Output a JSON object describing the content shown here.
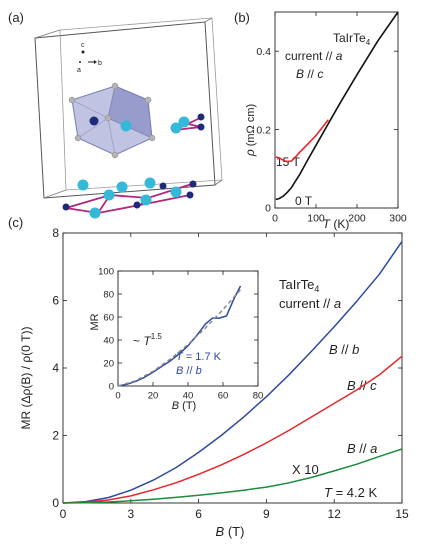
{
  "panel_a": {
    "label": "(a)",
    "axes": {
      "c": "c",
      "a": "a",
      "b": "b"
    }
  },
  "panel_b": {
    "label": "(b)",
    "compound": {
      "main": "TaIrTe",
      "sub": "4"
    },
    "annotations": {
      "current": "current // ",
      "current_dir": "a",
      "field": "B",
      "field_rest": " // ",
      "field_dir": "c"
    },
    "ylabel": {
      "rho": "ρ",
      "unit": "(mΩ cm)"
    },
    "xlabel": {
      "T": "T",
      "unit": " (K)"
    },
    "curve_labels": {
      "high": "15 T",
      "zero": "0 T"
    },
    "colors": {
      "zero": "#111111",
      "high": "#e8262a"
    }
  },
  "panel_c": {
    "label": "(c)",
    "compound": {
      "main": "TaIrTe",
      "sub": "4"
    },
    "current": {
      "text": "current // ",
      "dir": "a"
    },
    "ylabel": "MR (Δρ(B) / ρ(0 T))",
    "xlabel": {
      "B": "B",
      "unit": " (T)"
    },
    "series_labels": {
      "b": {
        "B": "B",
        "rest": " // ",
        "dir": "b"
      },
      "c": {
        "B": "B",
        "rest": " // ",
        "dir": "c"
      },
      "a": {
        "B": "B",
        "rest": " // ",
        "dir": "a"
      }
    },
    "x10": "X 10",
    "temperature": {
      "T": "T",
      "rest": " = 4.2 K"
    },
    "colors": {
      "b": "#2e4aa0",
      "c": "#e8262a",
      "a": "#1e8a3c"
    }
  },
  "inset": {
    "ylabel": "MR",
    "xlabel": {
      "B": "B",
      "unit": " (T)"
    },
    "power_law": {
      "prefix": "~ ",
      "T": "T",
      "exp": "1.5"
    },
    "temperature": {
      "T": "T",
      "rest": " = 1.7 K"
    },
    "field": {
      "B": "B",
      "rest": " // ",
      "dir": "b"
    }
  },
  "chart_data": [
    {
      "type": "line",
      "panel": "(b)",
      "xlabel": "T (K)",
      "ylabel": "ρ (mΩ cm)",
      "xlim": [
        0,
        300
      ],
      "ylim": [
        0,
        0.5
      ],
      "xticks": [
        0,
        100,
        200,
        300
      ],
      "yticks": [
        0,
        0.2,
        0.4
      ],
      "series": [
        {
          "name": "0 T",
          "x": [
            2,
            10,
            20,
            30,
            40,
            60,
            80,
            100,
            130,
            160,
            200,
            250,
            300
          ],
          "y": [
            0.022,
            0.024,
            0.03,
            0.04,
            0.052,
            0.085,
            0.123,
            0.16,
            0.215,
            0.27,
            0.34,
            0.425,
            0.5
          ]
        },
        {
          "name": "15 T",
          "x": [
            2,
            10,
            20,
            30,
            40,
            50,
            60,
            80,
            100,
            130
          ],
          "y": [
            0.13,
            0.128,
            0.122,
            0.118,
            0.12,
            0.13,
            0.142,
            0.163,
            0.185,
            0.225
          ]
        }
      ]
    },
    {
      "type": "line",
      "panel": "(c)",
      "xlabel": "B (T)",
      "ylabel": "MR (Δρ(B) / ρ(0 T))",
      "xlim": [
        0,
        15
      ],
      "ylim": [
        0,
        8
      ],
      "xticks": [
        0,
        3,
        6,
        9,
        12,
        15
      ],
      "yticks": [
        0,
        2,
        4,
        6,
        8
      ],
      "series": [
        {
          "name": "B // b",
          "x": [
            0,
            1,
            2,
            3,
            4,
            5,
            6,
            7,
            8,
            9,
            10,
            11,
            12,
            13,
            14,
            15
          ],
          "y": [
            0,
            0.04,
            0.16,
            0.38,
            0.68,
            1.05,
            1.5,
            2.0,
            2.55,
            3.15,
            3.8,
            4.5,
            5.22,
            5.98,
            6.78,
            7.75
          ]
        },
        {
          "name": "B // c",
          "x": [
            0,
            1,
            2,
            3,
            4,
            5,
            6,
            7,
            8,
            9,
            10,
            11,
            12,
            13,
            14,
            15
          ],
          "y": [
            0,
            0.02,
            0.09,
            0.21,
            0.39,
            0.6,
            0.85,
            1.13,
            1.44,
            1.78,
            2.15,
            2.55,
            2.95,
            3.35,
            3.8,
            4.35
          ]
        },
        {
          "name": "B // a",
          "x": [
            0,
            1,
            2,
            3,
            4,
            5,
            6,
            7,
            8,
            9,
            10,
            11,
            12,
            13,
            14,
            15
          ],
          "y": [
            0,
            0.008,
            0.03,
            0.065,
            0.11,
            0.165,
            0.23,
            0.3,
            0.38,
            0.47,
            0.6,
            0.76,
            0.95,
            1.15,
            1.38,
            1.6
          ]
        }
      ]
    },
    {
      "type": "line",
      "panel": "(c) inset",
      "xlabel": "B (T)",
      "ylabel": "MR",
      "xlim": [
        0,
        80
      ],
      "ylim": [
        0,
        100
      ],
      "xticks": [
        0,
        20,
        40,
        60,
        80
      ],
      "yticks": [
        0,
        20,
        40,
        60,
        80,
        100
      ],
      "series": [
        {
          "name": "B // b",
          "x": [
            0,
            5,
            10,
            15,
            20,
            25,
            30,
            35,
            40,
            45,
            50,
            54,
            58,
            62,
            66,
            70
          ],
          "y": [
            0,
            1.5,
            4,
            7.5,
            12,
            17,
            22,
            28,
            35,
            44,
            54,
            59,
            59,
            61,
            75,
            87
          ]
        },
        {
          "name": "~ T^1.5",
          "dashed": true,
          "x": [
            0,
            10,
            20,
            30,
            40,
            50,
            60,
            70
          ],
          "y": [
            0,
            4.5,
            12.8,
            23.5,
            36.2,
            50.5,
            66.4,
            83.7
          ]
        }
      ]
    }
  ]
}
